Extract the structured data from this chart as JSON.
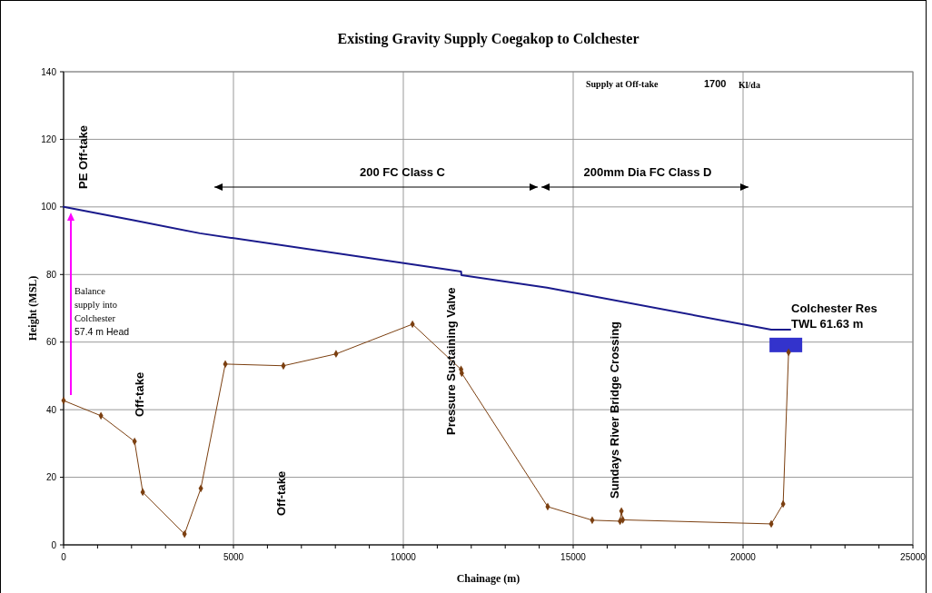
{
  "chart_data": {
    "type": "line",
    "title": "Existing Gravity Supply Coegakop to Colchester",
    "xlabel": "Chainage (m)",
    "ylabel": "Height (MSL)",
    "xlim": [
      0,
      25000
    ],
    "ylim": [
      0,
      140
    ],
    "xticks": [
      0,
      {
        "value": 1000,
        "label": null
      },
      {
        "value": 2000,
        "label": null
      },
      {
        "value": 3000,
        "label": null
      },
      {
        "value": 4000,
        "label": null
      },
      5000,
      {
        "value": 6000,
        "label": null
      },
      {
        "value": 7000,
        "label": null
      },
      {
        "value": 8000,
        "label": null
      },
      {
        "value": 9000,
        "label": null
      },
      10000,
      {
        "value": 11000,
        "label": null
      },
      {
        "value": 12000,
        "label": null
      },
      {
        "value": 13000,
        "label": null
      },
      {
        "value": 14000,
        "label": null
      },
      15000,
      {
        "value": 16000,
        "label": null
      },
      {
        "value": 17000,
        "label": null
      },
      {
        "value": 18000,
        "label": null
      },
      {
        "value": 19000,
        "label": null
      },
      20000,
      {
        "value": 21000,
        "label": null
      },
      {
        "value": 22000,
        "label": null
      },
      {
        "value": 23000,
        "label": null
      },
      {
        "value": 24000,
        "label": null
      },
      25000
    ],
    "yticks": [
      0,
      20,
      40,
      60,
      80,
      100,
      120,
      140
    ],
    "grid": true,
    "series": [
      {
        "color": "#1a1a8c",
        "marker": "none",
        "x": [
          0,
          2090,
          4010,
          11700,
          11710,
          14230,
          20830,
          21390
        ],
        "values": [
          100,
          96.0,
          92.2,
          80.9,
          79.8,
          76.1,
          63.7,
          63.7
        ]
      },
      {
        "color": "#7b3f10",
        "marker": "diamond",
        "x": [
          0,
          1100,
          2090,
          2330,
          3560,
          4040,
          4760,
          6470,
          8020,
          10270,
          11700,
          11720,
          14250,
          15560,
          16380,
          16420,
          16460,
          20830,
          21180,
          21340
        ],
        "values": [
          42.7,
          38.2,
          30.6,
          15.6,
          3.2,
          16.7,
          53.5,
          53.0,
          56.5,
          65.3,
          51.9,
          50.8,
          11.3,
          7.3,
          7.0,
          10.0,
          7.4,
          6.2,
          12.1,
          57.0
        ]
      }
    ],
    "annotations": [
      "PE Off-take",
      "Off-take",
      "Off-take",
      "Pressure Sustaining Valve",
      "Sundays River Bridge Crossing",
      "200 FC Class C",
      "200mm Dia FC Class D",
      "Colchester Res",
      "TWL 61.63 m",
      "Balance",
      "supply into",
      "Colchester",
      "57.4    m Head",
      "Supply at Off-take",
      "1700",
      "Kl/da"
    ]
  }
}
